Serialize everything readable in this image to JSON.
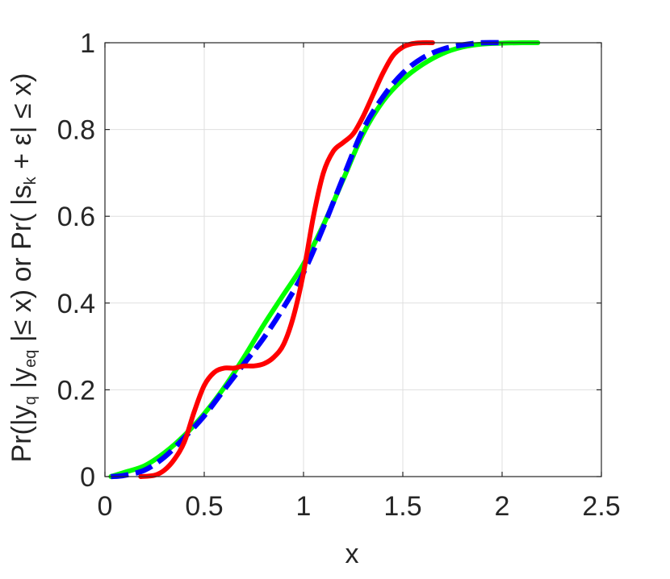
{
  "chart_data": {
    "type": "line",
    "xlabel": "x",
    "ylabel": {
      "p1": "Pr(|y",
      "sub1": "q",
      "p2": " |y",
      "sub2": "eq",
      "p3": " |≤ x) or Pr( |s",
      "sub3": "k",
      "p4": " + ε| ≤ x)"
    },
    "xlim": [
      0,
      2.5
    ],
    "ylim": [
      0,
      1
    ],
    "xticks": [
      0,
      0.5,
      1,
      1.5,
      2,
      2.5
    ],
    "xtick_labels": [
      "0",
      "0.5",
      "1",
      "1.5",
      "2",
      "2.5"
    ],
    "yticks": [
      0,
      0.2,
      0.4,
      0.6,
      0.8,
      1
    ],
    "ytick_labels": [
      "0",
      "0.2",
      "0.4",
      "0.6",
      "0.8",
      "1"
    ],
    "grid": true,
    "colors": {
      "green": "#00ff00",
      "blue": "#0000ff",
      "red": "#ff0000"
    },
    "series": [
      {
        "color": "#00ff00",
        "style": "solid",
        "x": [
          0.03,
          0.1,
          0.2,
          0.3,
          0.4,
          0.5,
          0.6,
          0.7,
          0.8,
          0.9,
          1.0,
          1.1,
          1.2,
          1.3,
          1.4,
          1.5,
          1.6,
          1.7,
          1.8,
          1.9,
          2.0,
          2.1,
          2.18
        ],
        "y": [
          0.0,
          0.01,
          0.025,
          0.055,
          0.095,
          0.145,
          0.205,
          0.275,
          0.35,
          0.42,
          0.49,
          0.58,
          0.685,
          0.79,
          0.865,
          0.915,
          0.95,
          0.975,
          0.99,
          0.997,
          0.999,
          1.0,
          1.0
        ]
      },
      {
        "color": "#0000ff",
        "style": "dashed",
        "x": [
          0.03,
          0.1,
          0.2,
          0.3,
          0.4,
          0.5,
          0.6,
          0.7,
          0.8,
          0.9,
          1.0,
          1.1,
          1.2,
          1.3,
          1.4,
          1.5,
          1.6,
          1.7,
          1.8,
          1.9,
          2.0
        ],
        "y": [
          0.0,
          0.003,
          0.015,
          0.045,
          0.09,
          0.14,
          0.2,
          0.26,
          0.32,
          0.39,
          0.47,
          0.575,
          0.69,
          0.8,
          0.875,
          0.93,
          0.965,
          0.985,
          0.995,
          1.0,
          1.0
        ]
      },
      {
        "color": "#ff0000",
        "style": "solid",
        "x": [
          0.18,
          0.25,
          0.3,
          0.35,
          0.4,
          0.45,
          0.5,
          0.55,
          0.6,
          0.65,
          0.7,
          0.75,
          0.8,
          0.85,
          0.9,
          0.95,
          1.0,
          1.05,
          1.1,
          1.15,
          1.2,
          1.25,
          1.3,
          1.35,
          1.4,
          1.45,
          1.5,
          1.55,
          1.6,
          1.65
        ],
        "y": [
          0.0,
          0.003,
          0.015,
          0.04,
          0.08,
          0.15,
          0.21,
          0.24,
          0.25,
          0.25,
          0.255,
          0.255,
          0.26,
          0.275,
          0.305,
          0.37,
          0.47,
          0.6,
          0.7,
          0.75,
          0.77,
          0.79,
          0.83,
          0.88,
          0.93,
          0.97,
          0.99,
          0.998,
          1.0,
          1.0
        ]
      }
    ]
  }
}
